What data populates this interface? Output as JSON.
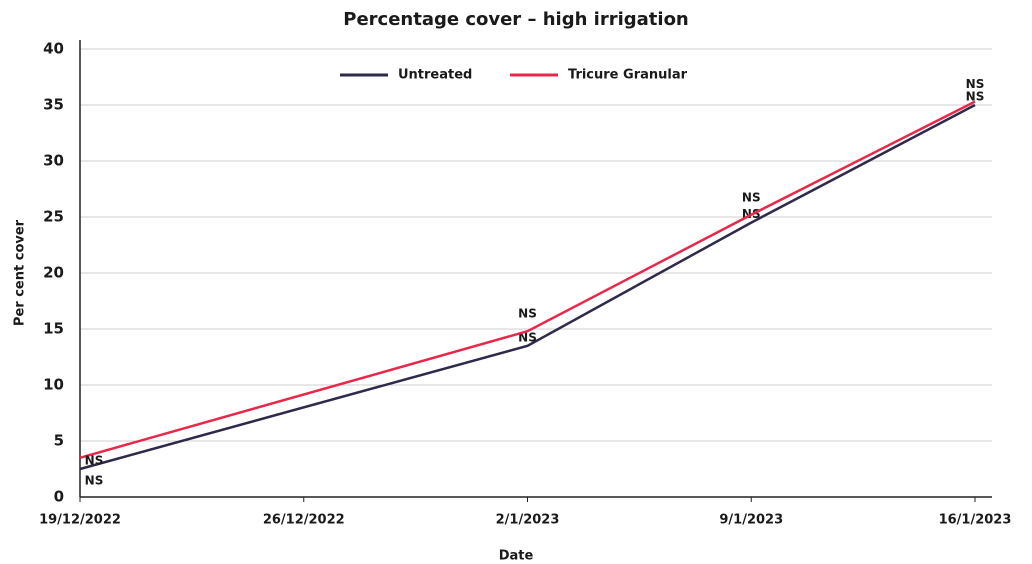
{
  "chart_data": {
    "type": "line",
    "title": "Percentage cover – high irrigation",
    "x_label": "Date",
    "y_label": "Per cent cover",
    "xlim": [
      "19/12/2022",
      "16/1/2023"
    ],
    "xticks": [
      "19/12/2022",
      "26/12/2022",
      "2/1/2023",
      "9/1/2023",
      "16/1/2023"
    ],
    "ylim": [
      0,
      40
    ],
    "yticks": [
      0,
      5,
      10,
      15,
      20,
      25,
      30,
      35,
      40
    ],
    "grid": true,
    "x": [
      "19/12/2022",
      "2/1/2023",
      "9/1/2023",
      "16/1/2023"
    ],
    "series": [
      {
        "name": "Untreated",
        "color": "#2e2a4a",
        "values": [
          2.5,
          13.5,
          24.5,
          35
        ],
        "labels": [
          "NS",
          "NS",
          "NS",
          "NS"
        ]
      },
      {
        "name": "Tricure Granular",
        "color": "#e8284a",
        "values": [
          3.5,
          14.8,
          25.2,
          35.3
        ],
        "labels": [
          "NS",
          "NS",
          "NS",
          "NS"
        ]
      }
    ],
    "legend": "top"
  }
}
